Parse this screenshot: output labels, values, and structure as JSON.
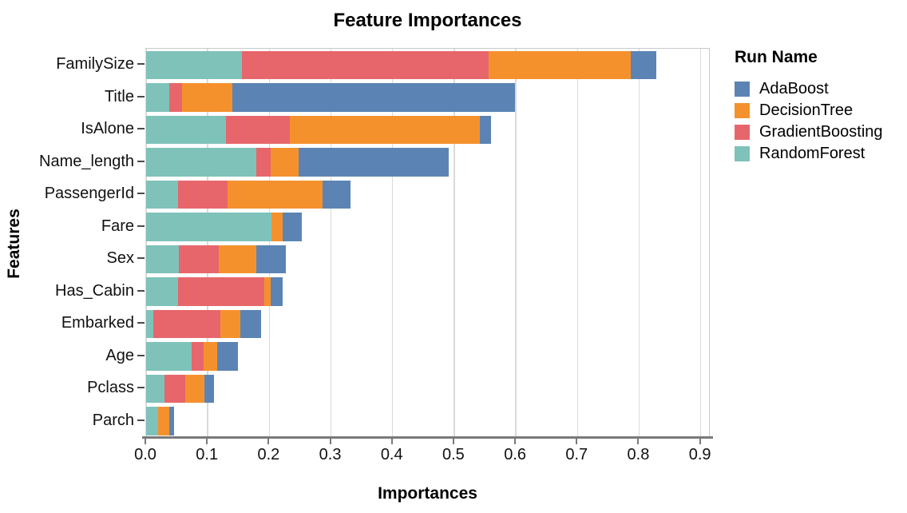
{
  "chart_data": {
    "type": "bar",
    "orientation": "horizontal",
    "stacked": true,
    "title": "Feature Importances",
    "xlabel": "Importances",
    "ylabel": "Features",
    "legend_title": "Run Name",
    "legend_position": "right",
    "grid": true,
    "xlim": [
      0,
      0.916
    ],
    "x_ticks": [
      0.0,
      0.1,
      0.2,
      0.3,
      0.4,
      0.5,
      0.6,
      0.7,
      0.8,
      0.9
    ],
    "categories": [
      "FamilySize",
      "Title",
      "IsAlone",
      "Name_length",
      "PassengerId",
      "Fare",
      "Sex",
      "Has_Cabin",
      "Embarked",
      "Age",
      "Pclass",
      "Parch"
    ],
    "stack_order": [
      "RandomForest",
      "GradientBoosting",
      "DecisionTree",
      "AdaBoost"
    ],
    "series": [
      {
        "name": "AdaBoost",
        "color": "#5b84b4",
        "values": [
          0.041,
          0.459,
          0.018,
          0.244,
          0.046,
          0.031,
          0.048,
          0.019,
          0.033,
          0.034,
          0.015,
          0.009
        ]
      },
      {
        "name": "DecisionTree",
        "color": "#f5912d",
        "values": [
          0.231,
          0.082,
          0.309,
          0.045,
          0.154,
          0.019,
          0.061,
          0.01,
          0.032,
          0.022,
          0.031,
          0.017
        ]
      },
      {
        "name": "GradientBoosting",
        "color": "#e7666b",
        "values": [
          0.4,
          0.02,
          0.103,
          0.023,
          0.08,
          0.0,
          0.065,
          0.14,
          0.109,
          0.019,
          0.034,
          0.0
        ]
      },
      {
        "name": "RandomForest",
        "color": "#7fc2ba",
        "values": [
          0.156,
          0.038,
          0.13,
          0.179,
          0.052,
          0.203,
          0.053,
          0.052,
          0.012,
          0.074,
          0.03,
          0.02
        ]
      }
    ],
    "colors": {
      "grid": "#dadada",
      "axis": "#7a7a7a",
      "text": "#000000"
    }
  }
}
